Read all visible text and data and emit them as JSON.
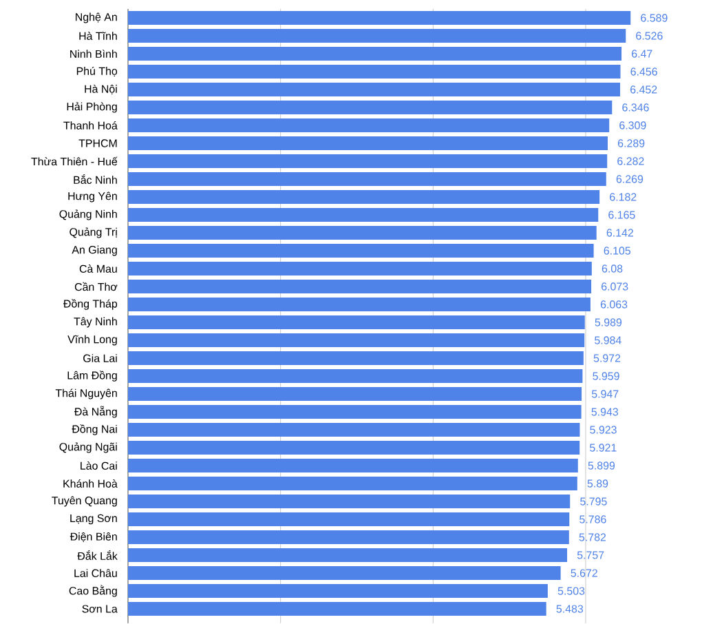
{
  "chart_data": {
    "type": "bar",
    "orientation": "horizontal",
    "categories": [
      "Nghệ An",
      "Hà Tĩnh",
      "Ninh Bình",
      "Phú Thọ",
      "Hà Nội",
      "Hải Phòng",
      "Thanh Hoá",
      "TPHCM",
      "Thừa Thiên - Huế",
      "Bắc Ninh",
      "Hưng Yên",
      "Quảng Ninh",
      "Quảng Trị",
      "An Giang",
      "Cà Mau",
      "Cần Thơ",
      "Đồng Tháp",
      "Tây Ninh",
      "Vĩnh Long",
      "Gia Lai",
      "Lâm Đồng",
      "Thái Nguyên",
      "Đà Nẵng",
      "Đồng Nai",
      "Quảng Ngãi",
      "Lào Cai",
      "Khánh Hoà",
      "Tuyên Quang",
      "Lạng Sơn",
      "Điện Biên",
      "Đắk Lắk",
      "Lai Châu",
      "Cao Bằng",
      "Sơn La"
    ],
    "values": [
      6.589,
      6.526,
      6.47,
      6.456,
      6.452,
      6.346,
      6.309,
      6.289,
      6.282,
      6.269,
      6.182,
      6.165,
      6.142,
      6.105,
      6.08,
      6.073,
      6.063,
      5.989,
      5.984,
      5.972,
      5.959,
      5.947,
      5.943,
      5.923,
      5.921,
      5.899,
      5.89,
      5.795,
      5.786,
      5.782,
      5.757,
      5.672,
      5.503,
      5.483
    ],
    "color": "#5083e8",
    "grid": "x",
    "data_labels": true,
    "tick_labels": "y"
  }
}
